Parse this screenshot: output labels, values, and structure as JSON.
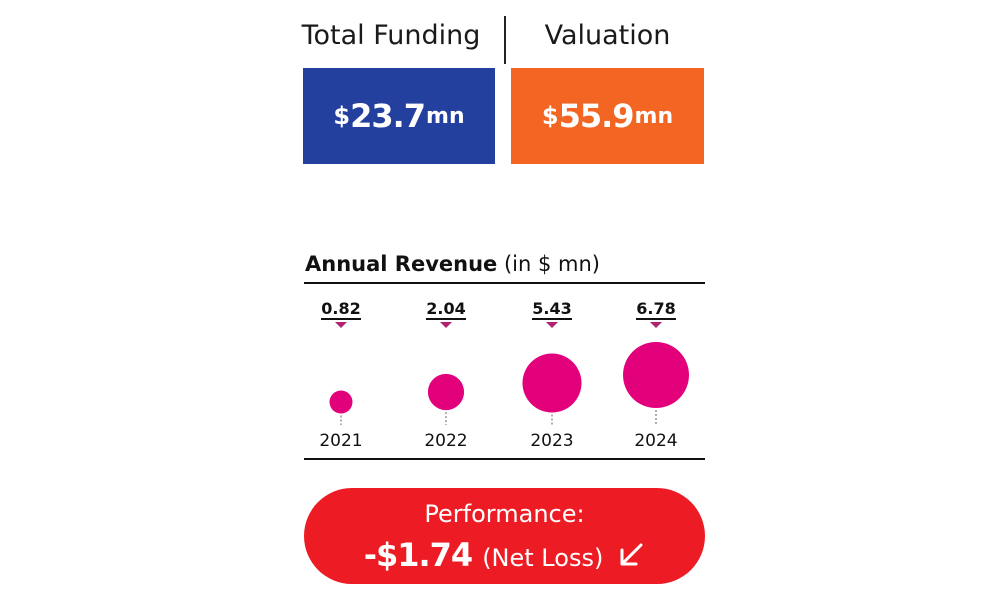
{
  "header": {
    "funding_label": "Total Funding",
    "valuation_label": "Valuation"
  },
  "metrics": {
    "funding": {
      "currency": "$",
      "value": "23.7",
      "unit": "mn",
      "color": "#24409e"
    },
    "valuation": {
      "currency": "$",
      "value": "55.9",
      "unit": "mn",
      "color": "#f26522"
    }
  },
  "chart_data": {
    "type": "scatter",
    "title_bold": "Annual Revenue",
    "title_rest": "(in $ mn)",
    "categories": [
      "2021",
      "2022",
      "2023",
      "2024"
    ],
    "values": [
      0.82,
      2.04,
      5.43,
      6.78
    ],
    "value_labels": [
      "0.82",
      "2.04",
      "5.43",
      "6.78"
    ],
    "bubble_color": "#e3007b",
    "marker_color": "#b0226e"
  },
  "performance": {
    "label": "Performance:",
    "value": "-$1.74",
    "note": "(Net Loss)",
    "arrow_icon": "arrow-down-left-icon",
    "color": "#ed1c24"
  }
}
